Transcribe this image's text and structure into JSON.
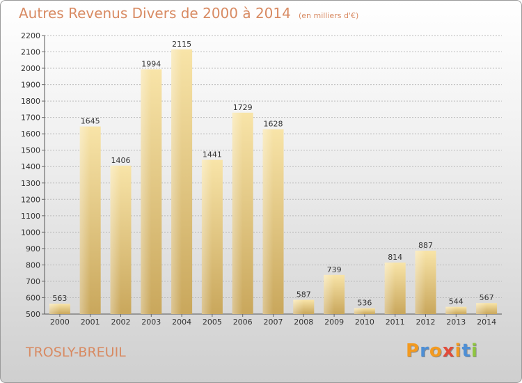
{
  "title": "Autres Revenus Divers de 2000 à 2014",
  "unit_note": "(en milliers d'€)",
  "commune": "TROSLY-BREUIL",
  "logo": {
    "text": "Proxiti",
    "letter_colors": [
      "#f39a1f",
      "#4d8fd6",
      "#f39a1f",
      "#e24b3a",
      "#f39a1f",
      "#4d8fd6",
      "#8fc63f"
    ]
  },
  "colors": {
    "bar_top": "#f8e4a8",
    "bar_bottom": "#c9a75c",
    "grid": "#bbbbbb",
    "title": "#d88a62"
  },
  "chart_data": {
    "type": "bar",
    "categories": [
      "2000",
      "2001",
      "2002",
      "2003",
      "2004",
      "2005",
      "2006",
      "2007",
      "2008",
      "2009",
      "2010",
      "2011",
      "2012",
      "2013",
      "2014"
    ],
    "values": [
      563,
      1645,
      1406,
      1994,
      2115,
      1441,
      1729,
      1628,
      587,
      739,
      536,
      814,
      887,
      544,
      567
    ],
    "ylim": [
      500,
      2200
    ],
    "yticks": [
      500,
      600,
      700,
      800,
      900,
      1000,
      1100,
      1200,
      1300,
      1400,
      1500,
      1600,
      1700,
      1800,
      1900,
      2000,
      2100,
      2200
    ],
    "grid": true
  }
}
